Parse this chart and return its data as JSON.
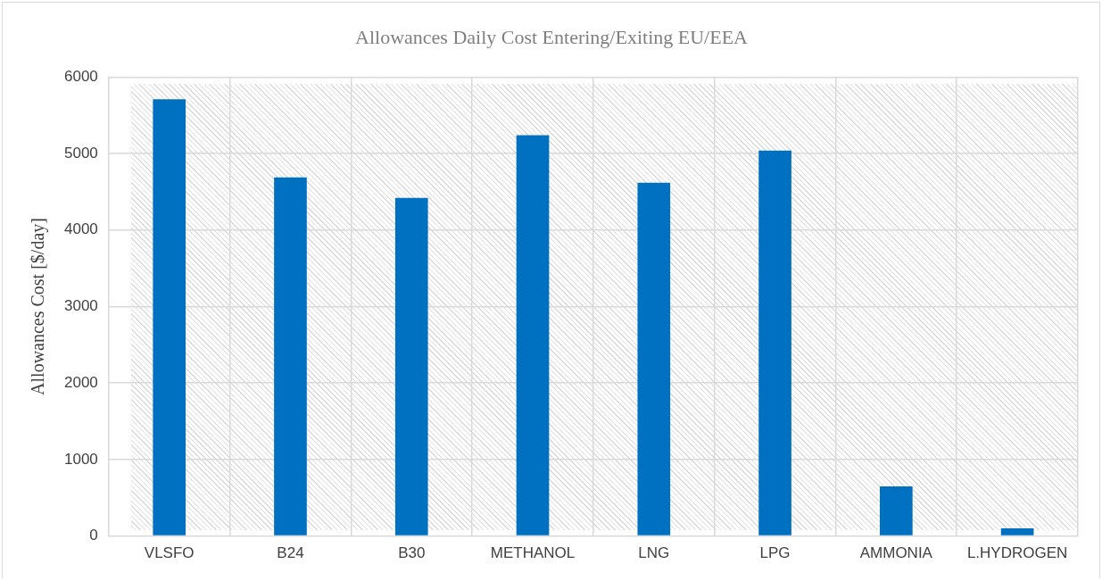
{
  "chart_data": {
    "type": "bar",
    "title": "Allowances Daily Cost Entering/Exiting EU/EEA",
    "ylabel": "Allowances Cost [$/day]",
    "categories": [
      "VLSFO",
      "B24",
      "B30",
      "METHANOL",
      "LNG",
      "LPG",
      "AMMONIA",
      "L.HYDROGEN"
    ],
    "values": [
      5710,
      4690,
      4420,
      5240,
      4620,
      5040,
      650,
      100
    ],
    "color": "#0070c0",
    "ylim": [
      0,
      6000
    ],
    "yticks": [
      0,
      1000,
      2000,
      3000,
      4000,
      5000,
      6000
    ],
    "grid": true,
    "legend": false
  }
}
